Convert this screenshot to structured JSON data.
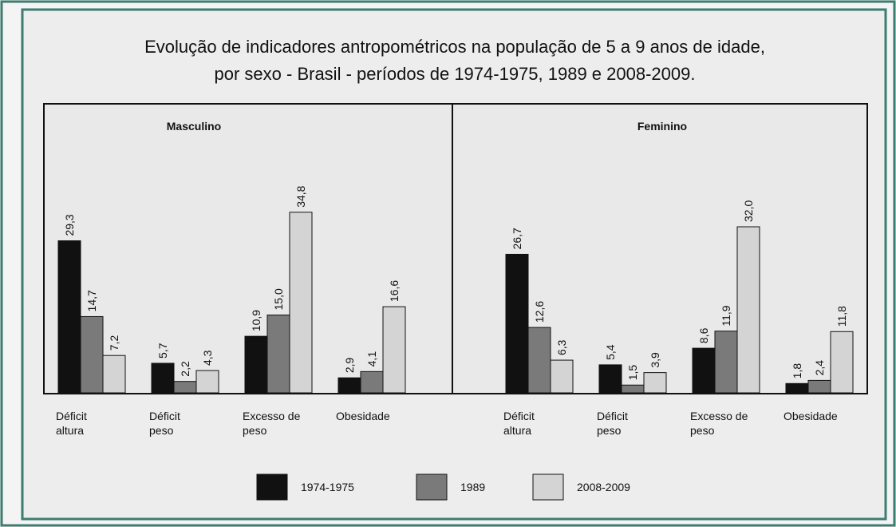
{
  "chart_data": {
    "type": "bar",
    "title": "Evolução de indicadores antropométricos na população de 5 a 9 anos de idade, por sexo - Brasil - períodos de 1974-1975, 1989 e 2008-2009.",
    "categories": [
      "Déficit altura",
      "Déficit peso",
      "Excesso de peso",
      "Obesidade"
    ],
    "series": [
      {
        "name": "1974-1975",
        "color": "#111111"
      },
      {
        "name": "1989",
        "color": "#7a7a7a"
      },
      {
        "name": "2008-2009",
        "color": "#d4d4d4"
      }
    ],
    "panels": [
      {
        "title": "Masculino",
        "series": [
          {
            "values": [
              29.3,
              5.7,
              10.9,
              2.9
            ],
            "value_labels": [
              "29,3",
              "5,7",
              "10,9",
              "2,9"
            ]
          },
          {
            "values": [
              14.7,
              2.2,
              15.0,
              4.1
            ],
            "value_labels": [
              "14,7",
              "2,2",
              "15,0",
              "4,1"
            ]
          },
          {
            "values": [
              7.2,
              4.3,
              34.8,
              16.6
            ],
            "value_labels": [
              "7,2",
              "4,3",
              "34,8",
              "16,6"
            ]
          }
        ]
      },
      {
        "title": "Feminino",
        "series": [
          {
            "values": [
              26.7,
              5.4,
              8.6,
              1.8
            ],
            "value_labels": [
              "26,7",
              "5,4",
              "8,6",
              "1,8"
            ]
          },
          {
            "values": [
              12.6,
              1.5,
              11.9,
              2.4
            ],
            "value_labels": [
              "12,6",
              "1,5",
              "11,9",
              "2,4"
            ]
          },
          {
            "values": [
              6.3,
              3.9,
              32.0,
              11.8
            ],
            "value_labels": [
              "6,3",
              "3,9",
              "32,0",
              "11,8"
            ]
          }
        ]
      }
    ]
  }
}
